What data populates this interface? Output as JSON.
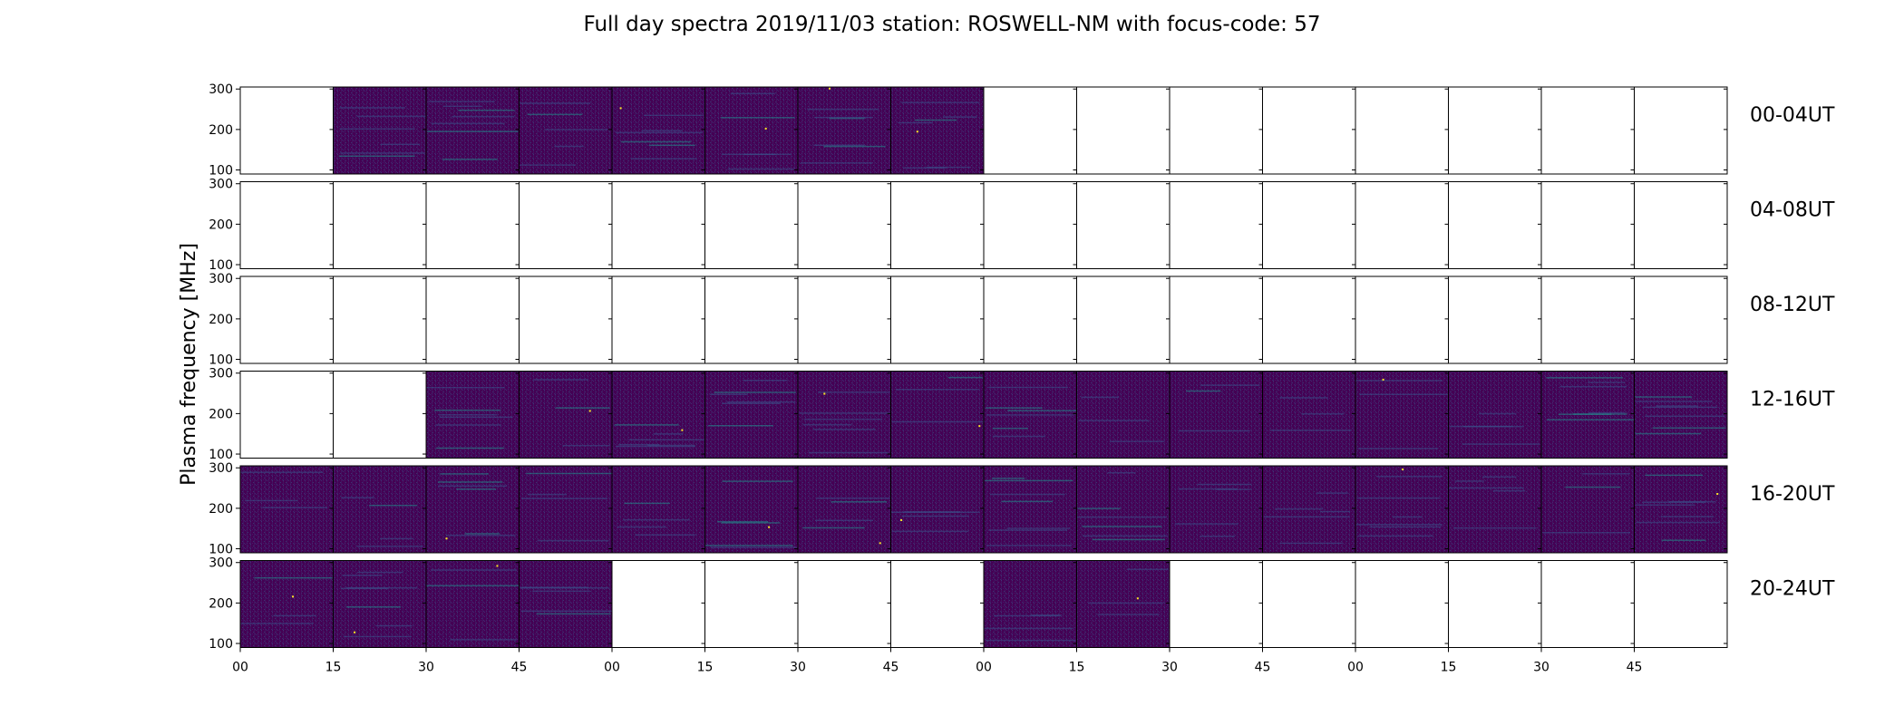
{
  "chart_data": {
    "type": "heatmap",
    "title": "Full day spectra 2019/11/03 station: ROSWELL-NM with focus-code: 57",
    "ylabel": "Plasma frequency [MHz]",
    "xlabel": "",
    "y_ticks": [
      100,
      200,
      300
    ],
    "ylim": [
      90,
      305
    ],
    "x_ticks": [
      "00",
      "15",
      "30",
      "45",
      "00",
      "15",
      "30",
      "45",
      "00",
      "15",
      "30",
      "45",
      "00",
      "15",
      "30",
      "45"
    ],
    "rows": [
      {
        "label": "00-04UT",
        "has_data": [
          false,
          true,
          true,
          true,
          true,
          true,
          true,
          true,
          false,
          false,
          false,
          false,
          false,
          false,
          false,
          false
        ]
      },
      {
        "label": "04-08UT",
        "has_data": [
          false,
          false,
          false,
          false,
          false,
          false,
          false,
          false,
          false,
          false,
          false,
          false,
          false,
          false,
          false,
          false
        ]
      },
      {
        "label": "08-12UT",
        "has_data": [
          false,
          false,
          false,
          false,
          false,
          false,
          false,
          false,
          false,
          false,
          false,
          false,
          false,
          false,
          false,
          false
        ]
      },
      {
        "label": "12-16UT",
        "has_data": [
          false,
          false,
          true,
          true,
          true,
          true,
          true,
          true,
          true,
          true,
          true,
          true,
          true,
          true,
          true,
          true
        ]
      },
      {
        "label": "16-20UT",
        "has_data": [
          true,
          true,
          true,
          true,
          true,
          true,
          true,
          true,
          true,
          true,
          true,
          true,
          true,
          true,
          true,
          true
        ]
      },
      {
        "label": "20-24UT",
        "has_data": [
          true,
          true,
          true,
          true,
          false,
          false,
          false,
          false,
          true,
          true,
          false,
          false,
          false,
          false,
          false,
          false
        ]
      }
    ],
    "colormap": {
      "background": "#440154",
      "mid": "#3b528b",
      "high": "#21918c",
      "peak": "#5ec962"
    }
  }
}
